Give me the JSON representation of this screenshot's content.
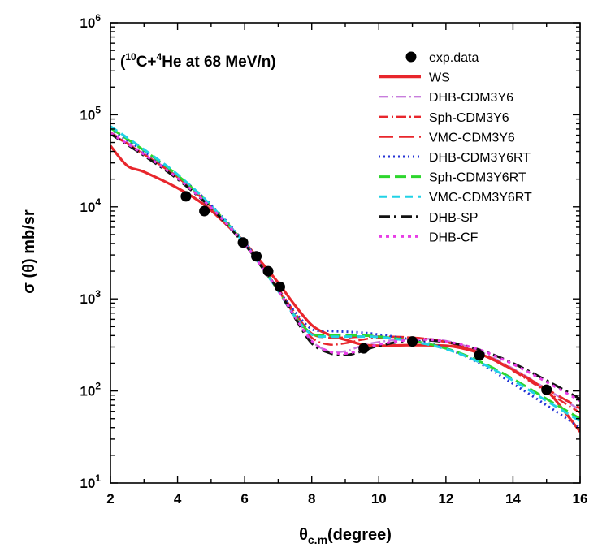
{
  "chart_data": {
    "type": "line",
    "title": {
      "prefix": "(",
      "sup1": "10",
      "mid": "C+",
      "sup2": "4",
      "suffix": "He at 68 MeV/n)"
    },
    "xlabel": {
      "main": "θ",
      "sub": "c.m",
      "unit": "(degree)"
    },
    "ylabel": "σ (θ)  mb/sr",
    "xlim": [
      2,
      16
    ],
    "ylim": [
      10,
      1000000
    ],
    "yscale": "log",
    "x_ticks": [
      2,
      4,
      6,
      8,
      10,
      12,
      14,
      16
    ],
    "x_tick_labels": [
      "2",
      "4",
      "6",
      "8",
      "10",
      "12",
      "14",
      "16"
    ],
    "y_ticks": [
      {
        "value": 10,
        "base": "10",
        "exp": "1"
      },
      {
        "value": 100,
        "base": "10",
        "exp": "2"
      },
      {
        "value": 1000,
        "base": "10",
        "exp": "3"
      },
      {
        "value": 10000,
        "base": "10",
        "exp": "4"
      },
      {
        "value": 100000,
        "base": "10",
        "exp": "5"
      },
      {
        "value": 1000000,
        "base": "10",
        "exp": "6"
      }
    ],
    "legend_position": "top-right",
    "exp_data": {
      "name": "exp.data",
      "x": [
        4.25,
        4.8,
        5.95,
        6.35,
        6.7,
        7.05,
        9.55,
        11.0,
        13.0,
        15.0
      ],
      "y": [
        13000,
        9000,
        4100,
        2900,
        2000,
        1350,
        290,
        345,
        245,
        103
      ]
    },
    "series": [
      {
        "name": "WS",
        "color": "#e8262c",
        "dash": "solid",
        "width": 3.2,
        "x": [
          2.0,
          2.5,
          3.0,
          4.0,
          4.8,
          5.5,
          6.0,
          6.5,
          7.0,
          7.5,
          8.0,
          8.5,
          9.0,
          9.5,
          10.0,
          11.0,
          12.0,
          12.5,
          13.0,
          14.0,
          15.0,
          15.5,
          16.0
        ],
        "y": [
          46000,
          28000,
          24000,
          16000,
          10500,
          6200,
          4100,
          2500,
          1500,
          850,
          520,
          410,
          360,
          320,
          310,
          315,
          310,
          290,
          255,
          170,
          100,
          62,
          36
        ]
      },
      {
        "name": "DHB-CDM3Y6",
        "color": "#c77ddc",
        "dash": "12,4,2,4",
        "width": 2.4,
        "x": [
          2.0,
          3.0,
          4.0,
          5.0,
          6.0,
          6.5,
          7.0,
          7.5,
          8.0,
          8.5,
          9.0,
          9.5,
          10.0,
          11.0,
          12.0,
          13.0,
          14.0,
          15.0,
          16.0
        ],
        "y": [
          65000,
          38000,
          21000,
          10000,
          4000,
          2300,
          1250,
          650,
          350,
          270,
          270,
          310,
          340,
          370,
          350,
          270,
          175,
          105,
          62
        ]
      },
      {
        "name": "Sph-CDM3Y6",
        "color": "#e8262c",
        "dash": "12,4,2,4",
        "width": 2.4,
        "x": [
          2.0,
          3.0,
          4.0,
          5.0,
          6.0,
          6.5,
          7.0,
          7.5,
          8.0,
          8.5,
          9.0,
          9.5,
          10.0,
          11.0,
          12.0,
          13.0,
          14.0,
          15.0,
          16.0
        ],
        "y": [
          64000,
          37000,
          21000,
          10000,
          4000,
          2300,
          1250,
          660,
          380,
          320,
          330,
          360,
          380,
          380,
          340,
          255,
          165,
          98,
          58
        ]
      },
      {
        "name": "VMC-CDM3Y6",
        "color": "#e8262c",
        "dash": "18,7",
        "width": 2.8,
        "x": [
          2.0,
          3.0,
          4.0,
          5.0,
          6.0,
          6.5,
          7.0,
          7.5,
          8.0,
          8.5,
          9.0,
          9.5,
          10.0,
          11.0,
          12.0,
          13.0,
          14.0,
          15.0,
          16.0
        ],
        "y": [
          63000,
          37000,
          21000,
          10000,
          4100,
          2350,
          1300,
          700,
          420,
          380,
          380,
          390,
          390,
          380,
          340,
          260,
          170,
          105,
          65
        ]
      },
      {
        "name": "DHB-CDM3Y6RT",
        "color": "#2433d6",
        "dash": "2,4",
        "width": 3.0,
        "x": [
          2.0,
          3.0,
          4.0,
          5.0,
          6.0,
          6.5,
          7.0,
          7.5,
          8.0,
          8.5,
          9.0,
          9.5,
          10.0,
          11.0,
          12.0,
          13.0,
          14.0,
          15.0,
          16.0
        ],
        "y": [
          70000,
          40000,
          22000,
          10500,
          4100,
          2300,
          1250,
          720,
          470,
          450,
          440,
          430,
          410,
          360,
          290,
          200,
          120,
          70,
          40
        ]
      },
      {
        "name": "Sph-CDM3Y6RT",
        "color": "#2dd62d",
        "dash": "14,6",
        "width": 3.0,
        "x": [
          2.0,
          3.0,
          4.0,
          5.0,
          6.0,
          6.5,
          7.0,
          7.5,
          8.0,
          8.5,
          9.0,
          9.5,
          10.0,
          11.0,
          12.0,
          13.0,
          14.0,
          15.0,
          16.0
        ],
        "y": [
          72000,
          41000,
          22000,
          10200,
          4000,
          2250,
          1230,
          650,
          420,
          400,
          400,
          400,
          390,
          350,
          290,
          210,
          135,
          82,
          50
        ]
      },
      {
        "name": "VMC-CDM3Y6RT",
        "color": "#21d2e6",
        "dash": "10,6",
        "width": 3.0,
        "x": [
          2.0,
          3.0,
          4.0,
          5.0,
          6.0,
          6.5,
          7.0,
          7.5,
          8.0,
          8.5,
          9.0,
          9.5,
          10.0,
          11.0,
          12.0,
          13.0,
          14.0,
          15.0,
          16.0
        ],
        "y": [
          75000,
          42000,
          22500,
          10300,
          4000,
          2250,
          1220,
          640,
          410,
          390,
          390,
          390,
          385,
          345,
          285,
          205,
          130,
          78,
          47
        ]
      },
      {
        "name": "DHB-SP",
        "color": "#111111",
        "dash": "14,5,3,5",
        "width": 3.0,
        "x": [
          2.0,
          3.0,
          4.0,
          5.0,
          6.0,
          6.5,
          7.0,
          7.5,
          8.0,
          8.5,
          9.0,
          9.5,
          10.0,
          11.0,
          12.0,
          13.0,
          14.0,
          15.0,
          16.0
        ],
        "y": [
          62000,
          36000,
          20000,
          9700,
          3900,
          2250,
          1250,
          620,
          330,
          260,
          245,
          270,
          310,
          355,
          340,
          280,
          200,
          130,
          82
        ]
      },
      {
        "name": "DHB-CF",
        "color": "#e83ee6",
        "dash": "4,5",
        "width": 3.0,
        "x": [
          2.0,
          3.0,
          4.0,
          5.0,
          6.0,
          6.5,
          7.0,
          7.5,
          8.0,
          8.5,
          9.0,
          9.5,
          10.0,
          11.0,
          12.0,
          13.0,
          14.0,
          15.0,
          16.0
        ],
        "y": [
          63000,
          37000,
          20500,
          9800,
          3950,
          2250,
          1240,
          640,
          350,
          270,
          255,
          280,
          320,
          360,
          345,
          280,
          195,
          125,
          78
        ]
      }
    ]
  }
}
